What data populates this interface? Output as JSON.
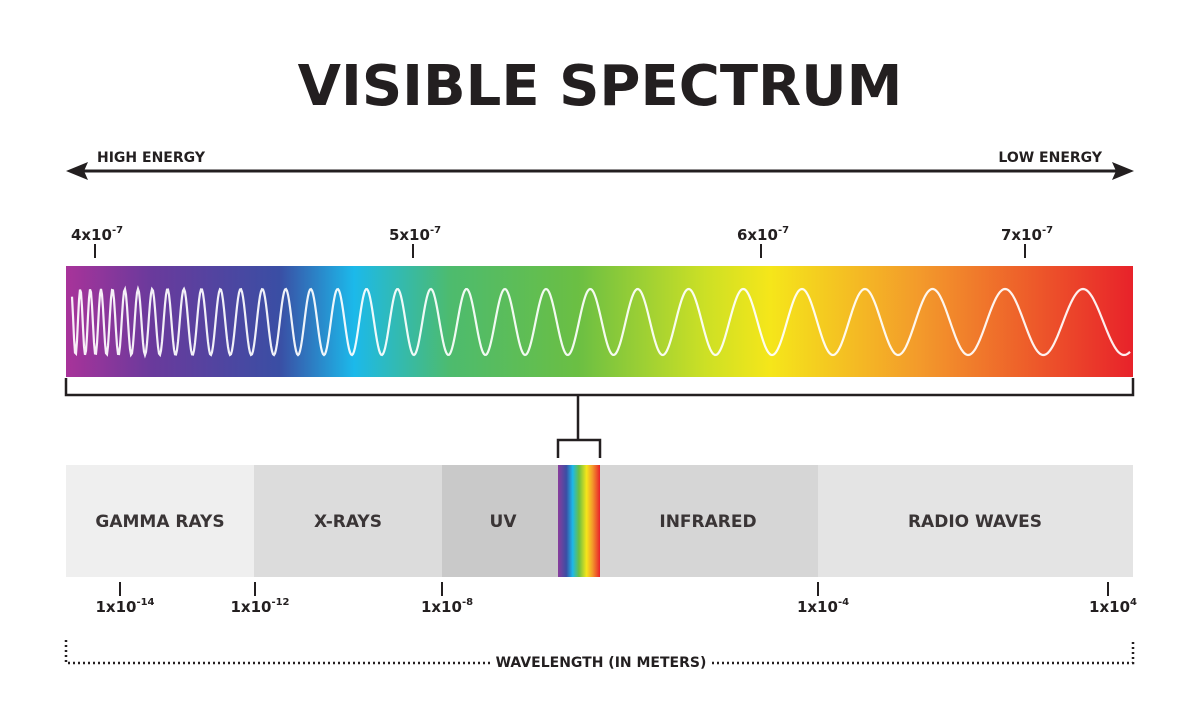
{
  "title": "VISIBLE SPECTRUM",
  "energy": {
    "high": "HIGH ENERGY",
    "low": "LOW ENERGY"
  },
  "visible_ticks": [
    {
      "base": "4x10",
      "exponent": "-7"
    },
    {
      "base": "5x10",
      "exponent": "-7"
    },
    {
      "base": "6x10",
      "exponent": "-7"
    },
    {
      "base": "7x10",
      "exponent": "-7"
    }
  ],
  "bands": [
    "GAMMA RAYS",
    "X-RAYS",
    "UV",
    "INFRARED",
    "RADIO WAVES"
  ],
  "wavelength_ticks": [
    {
      "base": "1x10",
      "exponent": "-14"
    },
    {
      "base": "1x10",
      "exponent": "-12"
    },
    {
      "base": "1x10",
      "exponent": "-8"
    },
    {
      "base": "1x10",
      "exponent": "-4"
    },
    {
      "base": "1x10",
      "exponent": "4"
    }
  ],
  "axis_label": "WAVELENGTH (IN METERS)"
}
